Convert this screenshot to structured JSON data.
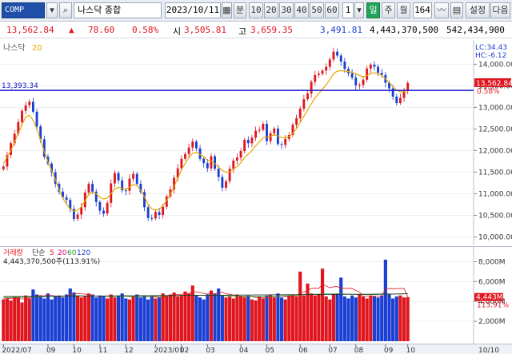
{
  "toolbar": {
    "code": "COMP",
    "name": "나스닥 종합",
    "date": "2023/10/11",
    "unit_min": "분",
    "periods": [
      "10",
      "20",
      "30",
      "40",
      "50",
      "60"
    ],
    "interval_value": "1",
    "day": "일",
    "week": "주",
    "month": "월",
    "count": "164",
    "settings": "설정",
    "next": "다음"
  },
  "quote": {
    "price": "13,562.84",
    "arrow": "▲",
    "change": "78.60",
    "pct": "0.58%",
    "open_label": "시",
    "open": "3,505.81",
    "high_label": "고",
    "high": "3,659.35",
    "low": "3,491.81",
    "volume": "4,443,370,500",
    "amount": "542,434,900"
  },
  "price_pane": {
    "legend_name": "나스닥",
    "legend_ma": "20",
    "hline_label": "13,393.34",
    "lc": "LC:34.43",
    "hc": "HC:-6.12",
    "last_price": "13,562.84",
    "last_pct": "0.58%",
    "ticks": [
      "14,000.00",
      "13,500.00",
      "13,000.00",
      "12,500.00",
      "12,000.00",
      "11,500.00",
      "11,000.00",
      "10,500.00",
      "10,000.00"
    ]
  },
  "vol_pane": {
    "legend_name": "거래량",
    "legend_simple": "단순",
    "legend_ma": [
      "5",
      "20",
      "60",
      "120"
    ],
    "readout": "4,443,370,500주(113.91%)",
    "ticks": [
      "8,000M",
      "6,000M",
      "4,000M",
      "2,000M"
    ],
    "last_vol": "4,443M",
    "last_pct": "113.91%"
  },
  "x_axis": {
    "labels": [
      "2022/07",
      "09",
      "10",
      "11",
      "12",
      "2023/01",
      "02",
      "03",
      "04",
      "05",
      "06",
      "07",
      "08",
      "09",
      "10"
    ],
    "right_label": "10/10"
  },
  "colors": {
    "up": "#e0161f",
    "down": "#1b3fd2",
    "ma": "#e6a800",
    "hline": "#1010c8",
    "accent": "#22a35a"
  },
  "chart_data": {
    "type": "candlestick",
    "y_range": [
      9900,
      14450
    ],
    "reference_line": 13393.34,
    "close": [
      11630,
      11900,
      12170,
      12390,
      12660,
      12920,
      13050,
      13130,
      12900,
      12560,
      12260,
      11860,
      11700,
      11500,
      11230,
      11050,
      10920,
      10860,
      10650,
      10420,
      10520,
      10690,
      11030,
      11230,
      11050,
      10810,
      10610,
      10540,
      10790,
      11240,
      11480,
      11310,
      11080,
      11070,
      11350,
      11460,
      11230,
      11040,
      10690,
      10440,
      10430,
      10580,
      10510,
      10700,
      10940,
      11100,
      11370,
      11590,
      11810,
      11920,
      12070,
      12210,
      12050,
      11810,
      11710,
      11590,
      11870,
      11580,
      11390,
      11140,
      11290,
      11580,
      11770,
      11840,
      11990,
      12250,
      12170,
      12300,
      12460,
      12480,
      12620,
      12220,
      12400,
      12510,
      12150,
      12130,
      12270,
      12360,
      12600,
      12750,
      12970,
      13190,
      13320,
      13590,
      13750,
      13780,
      13850,
      13940,
      14110,
      14290,
      14200,
      14060,
      13890,
      13790,
      13690,
      13510,
      13520,
      13640,
      13900,
      13990,
      13940,
      13800,
      13750,
      13570,
      13440,
      13250,
      13100,
      13220,
      13380,
      13562.84
    ],
    "ma20": [
      11700,
      11850,
      12000,
      12200,
      12400,
      12600,
      12780,
      12820,
      12700,
      12500,
      12250,
      11980,
      11740,
      11540,
      11330,
      11100,
      10900,
      10760,
      10650,
      10600,
      10620,
      10700,
      10840,
      10990,
      11040,
      11000,
      10920,
      10880,
      10900,
      11000,
      11110,
      11150,
      11120,
      11100,
      11150,
      11220,
      11190,
      11080,
      10930,
      10760,
      10650,
      10620,
      10640,
      10720,
      10850,
      10990,
      11170,
      11360,
      11560,
      11700,
      11840,
      11940,
      11960,
      11910,
      11860,
      11780,
      11760,
      11700,
      11620,
      11540,
      11500,
      11510,
      11570,
      11630,
      11720,
      11840,
      11920,
      12000,
      12110,
      12200,
      12300,
      12310,
      12330,
      12370,
      12340,
      12300,
      12300,
      12320,
      12400,
      12510,
      12650,
      12800,
      12940,
      13080,
      13220,
      13320,
      13420,
      13520,
      13640,
      13780,
      13840,
      13850,
      13840,
      13830,
      13810,
      13780,
      13740,
      13710,
      13740,
      13780,
      13800,
      13780,
      13740,
      13660,
      13580,
      13480,
      13400,
      13360,
      13360,
      13400
    ],
    "volume_M": [
      4200,
      4300,
      4100,
      4500,
      4400,
      3900,
      4600,
      4300,
      5200,
      4700,
      4500,
      4300,
      4800,
      4200,
      4500,
      4600,
      4400,
      4700,
      5300,
      4900,
      4600,
      4400,
      4500,
      4800,
      4700,
      4400,
      4600,
      4500,
      4300,
      4700,
      4400,
      4600,
      4800,
      4300,
      4200,
      4500,
      4700,
      4400,
      4600,
      4200,
      4500,
      4300,
      4400,
      4800,
      4600,
      4700,
      4900,
      4500,
      4600,
      5000,
      4800,
      5600,
      4600,
      4400,
      4200,
      4700,
      5100,
      4800,
      5300,
      4600,
      4400,
      4500,
      4300,
      4700,
      4500,
      4400,
      4600,
      4200,
      4100,
      4500,
      4300,
      4600,
      4700,
      4400,
      4800,
      4400,
      4200,
      4600,
      4700,
      4500,
      7000,
      4600,
      5800,
      4800,
      4600,
      4700,
      7300,
      4500,
      4200,
      4700,
      4800,
      6400,
      4500,
      4300,
      4600,
      4400,
      4700,
      4500,
      4300,
      4600,
      4500,
      4400,
      4600,
      8200,
      4700,
      4300,
      4500,
      4600,
      4400,
      4443
    ],
    "ma5_vol": [
      4250,
      4300,
      4300,
      4350,
      4300,
      4250,
      4300,
      4350,
      4450,
      4550,
      4600,
      4550,
      4700,
      4600,
      4550,
      4480,
      4500,
      4550,
      4700,
      4780,
      4800,
      4760,
      4740,
      4700,
      4620,
      4520,
      4520,
      4540,
      4520,
      4500,
      4520,
      4550,
      4560,
      4560,
      4500,
      4480,
      4520,
      4550,
      4520,
      4500,
      4480,
      4440,
      4400,
      4440,
      4480,
      4560,
      4700,
      4700,
      4720,
      4780,
      4800,
      4960,
      4970,
      4900,
      4800,
      4740,
      4780,
      4740,
      4880,
      4920,
      4780,
      4720,
      4640,
      4580,
      4500,
      4480,
      4500,
      4480,
      4400,
      4360,
      4360,
      4380,
      4460,
      4480,
      4520,
      4540,
      4480,
      4480,
      4520,
      4500,
      4900,
      4920,
      5120,
      5300,
      5340,
      5300,
      5740,
      5560,
      5380,
      5480,
      5500,
      5320,
      5320,
      5320,
      5300,
      5100,
      4960,
      4500,
      4520,
      4540,
      4540,
      4520,
      4500,
      5300,
      5300,
      5280,
      5300,
      5300,
      5300,
      4490
    ],
    "ma20_vol": [
      4400,
      4400,
      4410,
      4420,
      4430,
      4430,
      4440,
      4450,
      4460,
      4470,
      4480,
      4490,
      4500,
      4510,
      4520,
      4530,
      4540,
      4550,
      4560,
      4560,
      4560,
      4560,
      4550,
      4550,
      4550,
      4540,
      4540,
      4530,
      4530,
      4520,
      4520,
      4520,
      4520,
      4520,
      4510,
      4510,
      4510,
      4520,
      4520,
      4520,
      4530,
      4530,
      4540,
      4550,
      4560,
      4570,
      4580,
      4590,
      4600,
      4610,
      4620,
      4620,
      4620,
      4620,
      4620,
      4610,
      4610,
      4600,
      4600,
      4590,
      4580,
      4570,
      4560,
      4550,
      4540,
      4530,
      4520,
      4510,
      4500,
      4500,
      4500,
      4500,
      4510,
      4520,
      4540,
      4560,
      4580,
      4600,
      4620,
      4640,
      4660,
      4680,
      4700,
      4720,
      4730,
      4740,
      4750,
      4760,
      4760,
      4760,
      4760,
      4760,
      4750,
      4740,
      4730,
      4720,
      4710,
      4700,
      4700,
      4700,
      4700,
      4710,
      4720,
      4730,
      4740,
      4750,
      4760,
      4770,
      4780,
      4780
    ],
    "ma60_vol": [
      4500,
      4500,
      4500,
      4500,
      4500,
      4500,
      4500,
      4500,
      4510,
      4510,
      4510,
      4510,
      4520,
      4520,
      4520,
      4520,
      4530,
      4530,
      4530,
      4530,
      4540,
      4540,
      4540,
      4540,
      4550,
      4550,
      4550,
      4550,
      4560,
      4560,
      4560,
      4560,
      4570,
      4570,
      4570,
      4570,
      4580,
      4580,
      4580,
      4580,
      4590,
      4590,
      4590,
      4590,
      4600,
      4600,
      4600,
      4600,
      4610,
      4610,
      4610,
      4610,
      4620,
      4620,
      4620,
      4620,
      4630,
      4630,
      4630,
      4630,
      4640,
      4640,
      4640,
      4640,
      4650,
      4650,
      4650,
      4650,
      4660,
      4660,
      4660,
      4660,
      4670,
      4670,
      4670,
      4670,
      4680,
      4680,
      4680,
      4680,
      4690,
      4690,
      4690,
      4690,
      4700,
      4700,
      4700,
      4700,
      4710,
      4710,
      4710,
      4710,
      4720,
      4720,
      4720,
      4720,
      4730,
      4730,
      4730,
      4730,
      4740,
      4740,
      4740,
      4740,
      4750,
      4750,
      4750,
      4750,
      4760,
      4760
    ]
  }
}
